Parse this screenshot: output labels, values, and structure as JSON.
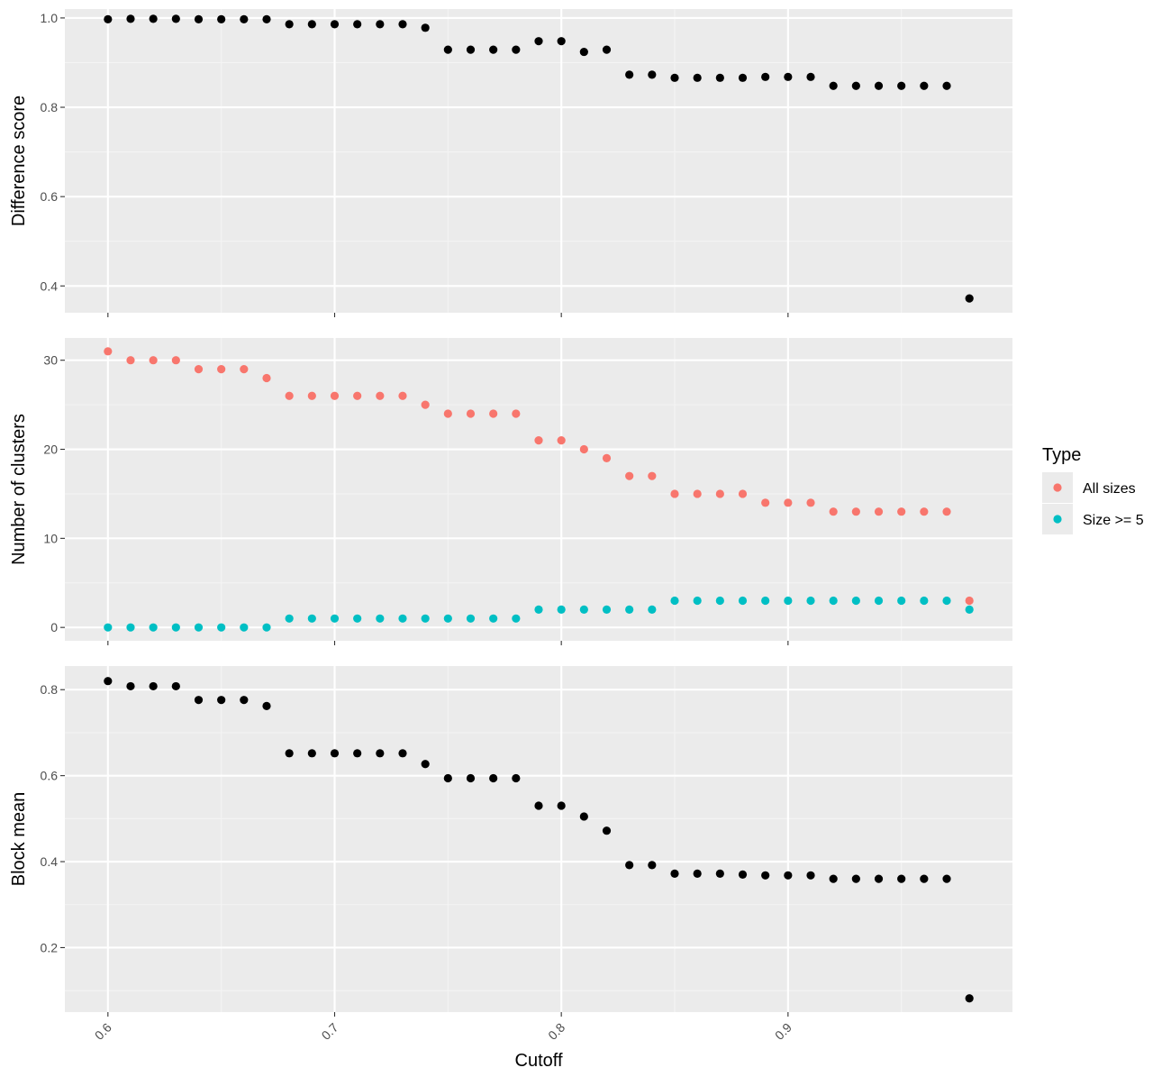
{
  "chart_data": {
    "type": "scatter",
    "layout": "three vertically stacked facets sharing the x axis",
    "xlabel": "Cutoff",
    "x_ticks": [
      0.6,
      0.7,
      0.8,
      0.9
    ],
    "x_tick_labels": [
      "0.6",
      "0.7",
      "0.8",
      "0.9"
    ],
    "xlim": [
      0.581,
      0.999
    ],
    "grid": true,
    "legend": {
      "title": "Type",
      "position": "right",
      "entries": [
        {
          "label": "All sizes",
          "color": "#F8766D"
        },
        {
          "label": "Size >= 5",
          "color": "#00BFC4"
        }
      ]
    },
    "panels": [
      {
        "ylabel": "Difference score",
        "ylim": [
          0.34,
          1.02
        ],
        "y_ticks": [
          0.4,
          0.6,
          0.8,
          1.0
        ],
        "y_tick_labels": [
          "0.4",
          "0.6",
          "0.8",
          "1.0"
        ],
        "series": [
          {
            "color": "#000000",
            "x": [
              0.6,
              0.61,
              0.62,
              0.63,
              0.64,
              0.65,
              0.66,
              0.67,
              0.68,
              0.69,
              0.7,
              0.71,
              0.72,
              0.73,
              0.74,
              0.75,
              0.76,
              0.77,
              0.78,
              0.79,
              0.8,
              0.81,
              0.82,
              0.83,
              0.84,
              0.85,
              0.86,
              0.87,
              0.88,
              0.89,
              0.9,
              0.91,
              0.92,
              0.93,
              0.94,
              0.95,
              0.96,
              0.97,
              0.98
            ],
            "y": [
              0.997,
              0.998,
              0.998,
              0.998,
              0.997,
              0.997,
              0.997,
              0.997,
              0.986,
              0.986,
              0.986,
              0.986,
              0.986,
              0.986,
              0.978,
              0.929,
              0.929,
              0.929,
              0.929,
              0.948,
              0.948,
              0.924,
              0.929,
              0.873,
              0.873,
              0.866,
              0.866,
              0.866,
              0.866,
              0.868,
              0.868,
              0.868,
              0.848,
              0.848,
              0.848,
              0.848,
              0.848,
              0.848,
              0.372
            ]
          }
        ]
      },
      {
        "ylabel": "Number of clusters",
        "ylim": [
          -1.5,
          32.5
        ],
        "y_ticks": [
          0,
          10,
          20,
          30
        ],
        "y_tick_labels": [
          "0",
          "10",
          "20",
          "30"
        ],
        "series": [
          {
            "name": "All sizes",
            "color": "#F8766D",
            "x": [
              0.6,
              0.61,
              0.62,
              0.63,
              0.64,
              0.65,
              0.66,
              0.67,
              0.68,
              0.69,
              0.7,
              0.71,
              0.72,
              0.73,
              0.74,
              0.75,
              0.76,
              0.77,
              0.78,
              0.79,
              0.8,
              0.81,
              0.82,
              0.83,
              0.84,
              0.85,
              0.86,
              0.87,
              0.88,
              0.89,
              0.9,
              0.91,
              0.92,
              0.93,
              0.94,
              0.95,
              0.96,
              0.97,
              0.98
            ],
            "y": [
              31,
              30,
              30,
              30,
              29,
              29,
              29,
              28,
              26,
              26,
              26,
              26,
              26,
              26,
              25,
              24,
              24,
              24,
              24,
              21,
              21,
              20,
              19,
              17,
              17,
              15,
              15,
              15,
              15,
              14,
              14,
              14,
              13,
              13,
              13,
              13,
              13,
              13,
              3
            ]
          },
          {
            "name": "Size >= 5",
            "color": "#00BFC4",
            "x": [
              0.6,
              0.61,
              0.62,
              0.63,
              0.64,
              0.65,
              0.66,
              0.67,
              0.68,
              0.69,
              0.7,
              0.71,
              0.72,
              0.73,
              0.74,
              0.75,
              0.76,
              0.77,
              0.78,
              0.79,
              0.8,
              0.81,
              0.82,
              0.83,
              0.84,
              0.85,
              0.86,
              0.87,
              0.88,
              0.89,
              0.9,
              0.91,
              0.92,
              0.93,
              0.94,
              0.95,
              0.96,
              0.97,
              0.98
            ],
            "y": [
              0,
              0,
              0,
              0,
              0,
              0,
              0,
              0,
              1,
              1,
              1,
              1,
              1,
              1,
              1,
              1,
              1,
              1,
              1,
              2,
              2,
              2,
              2,
              2,
              2,
              3,
              3,
              3,
              3,
              3,
              3,
              3,
              3,
              3,
              3,
              3,
              3,
              3,
              2
            ]
          }
        ]
      },
      {
        "ylabel": "Block mean",
        "ylim": [
          0.05,
          0.855
        ],
        "y_ticks": [
          0.2,
          0.4,
          0.6,
          0.8
        ],
        "y_tick_labels": [
          "0.2",
          "0.4",
          "0.6",
          "0.8"
        ],
        "series": [
          {
            "color": "#000000",
            "x": [
              0.6,
              0.61,
              0.62,
              0.63,
              0.64,
              0.65,
              0.66,
              0.67,
              0.68,
              0.69,
              0.7,
              0.71,
              0.72,
              0.73,
              0.74,
              0.75,
              0.76,
              0.77,
              0.78,
              0.79,
              0.8,
              0.81,
              0.82,
              0.83,
              0.84,
              0.85,
              0.86,
              0.87,
              0.88,
              0.89,
              0.9,
              0.91,
              0.92,
              0.93,
              0.94,
              0.95,
              0.96,
              0.97,
              0.98
            ],
            "y": [
              0.82,
              0.808,
              0.808,
              0.808,
              0.776,
              0.776,
              0.776,
              0.762,
              0.652,
              0.652,
              0.652,
              0.652,
              0.652,
              0.652,
              0.627,
              0.594,
              0.594,
              0.594,
              0.594,
              0.53,
              0.53,
              0.505,
              0.472,
              0.392,
              0.392,
              0.372,
              0.372,
              0.372,
              0.37,
              0.368,
              0.368,
              0.368,
              0.36,
              0.36,
              0.36,
              0.36,
              0.36,
              0.36,
              0.082
            ]
          }
        ]
      }
    ]
  }
}
